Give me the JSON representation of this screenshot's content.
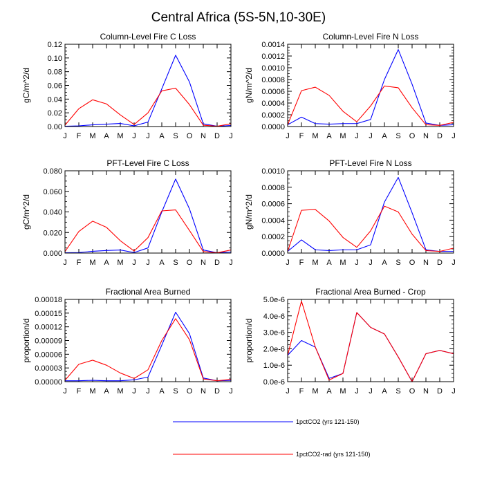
{
  "figure_title": "Central Africa (5S-5N,10-30E)",
  "legend": [
    {
      "label": "1pctCO2 (yrs 121-150)",
      "color": "#0000ff"
    },
    {
      "label": "1pctCO2-rad (yrs 121-150)",
      "color": "#ff0000"
    }
  ],
  "chart_data": [
    {
      "type": "line",
      "title": "Column-Level Fire C Loss",
      "ylabel": "gC/m^2/d",
      "categories": [
        "J",
        "F",
        "M",
        "A",
        "M",
        "J",
        "J",
        "A",
        "S",
        "O",
        "N",
        "D",
        "J"
      ],
      "ylim": [
        0,
        0.12
      ],
      "yticks": [
        0,
        0.02,
        0.04,
        0.06,
        0.08,
        0.1,
        0.12
      ],
      "yticklabels": [
        "0.00",
        "0.02",
        "0.04",
        "0.06",
        "0.08",
        "0.10",
        "0.12"
      ],
      "series": [
        {
          "name": "1pctCO2 (yrs 121-150)",
          "color": "#0000ff",
          "values": [
            0.0005,
            0.001,
            0.0025,
            0.0035,
            0.0045,
            0.001,
            0.0065,
            0.055,
            0.104,
            0.065,
            0.004,
            0.0005,
            0.0015
          ]
        },
        {
          "name": "1pctCO2-rad (yrs 121-150)",
          "color": "#ff0000",
          "values": [
            0.002,
            0.026,
            0.039,
            0.033,
            0.017,
            0.003,
            0.02,
            0.052,
            0.056,
            0.032,
            0.002,
            0.0005,
            0.004
          ]
        }
      ]
    },
    {
      "type": "line",
      "title": "Column-Level Fire N Loss",
      "ylabel": "gN/m^2/d",
      "categories": [
        "J",
        "F",
        "M",
        "A",
        "M",
        "J",
        "J",
        "A",
        "S",
        "O",
        "N",
        "D",
        "J"
      ],
      "ylim": [
        0,
        0.0014
      ],
      "yticks": [
        0,
        0.0002,
        0.0004,
        0.0006,
        0.0008,
        0.001,
        0.0012,
        0.0014
      ],
      "yticklabels": [
        "0.0000",
        "0.0002",
        "0.0004",
        "0.0006",
        "0.0008",
        "0.0010",
        "0.0012",
        "0.0014"
      ],
      "series": [
        {
          "name": "1pctCO2 (yrs 121-150)",
          "color": "#0000ff",
          "values": [
            3e-05,
            0.00016,
            5e-05,
            4e-05,
            5e-05,
            5e-05,
            0.00012,
            0.0008,
            0.00131,
            0.00072,
            6e-05,
            2e-05,
            3e-05
          ]
        },
        {
          "name": "1pctCO2-rad (yrs 121-150)",
          "color": "#ff0000",
          "values": [
            3e-05,
            0.00061,
            0.00067,
            0.00053,
            0.00026,
            8e-05,
            0.00035,
            0.00069,
            0.00066,
            0.00032,
            3e-05,
            2e-05,
            7e-05
          ]
        }
      ]
    },
    {
      "type": "line",
      "title": "PFT-Level Fire C Loss",
      "ylabel": "gC/m^2/d",
      "categories": [
        "J",
        "F",
        "M",
        "A",
        "M",
        "J",
        "J",
        "A",
        "S",
        "O",
        "N",
        "D",
        "J"
      ],
      "ylim": [
        0,
        0.08
      ],
      "yticks": [
        0,
        0.02,
        0.04,
        0.06,
        0.08
      ],
      "yticklabels": [
        "0.000",
        "0.020",
        "0.040",
        "0.060",
        "0.080"
      ],
      "series": [
        {
          "name": "1pctCO2 (yrs 121-150)",
          "color": "#0000ff",
          "values": [
            0.0003,
            0.0005,
            0.0017,
            0.0025,
            0.003,
            0.0005,
            0.005,
            0.04,
            0.072,
            0.043,
            0.003,
            0.0003,
            0.001
          ]
        },
        {
          "name": "1pctCO2-rad (yrs 121-150)",
          "color": "#ff0000",
          "values": [
            0.0015,
            0.021,
            0.031,
            0.025,
            0.012,
            0.002,
            0.015,
            0.041,
            0.042,
            0.022,
            0.0015,
            0.0003,
            0.003
          ]
        }
      ]
    },
    {
      "type": "line",
      "title": "PFT-Level Fire N Loss",
      "ylabel": "gN/m^2/d",
      "categories": [
        "J",
        "F",
        "M",
        "A",
        "M",
        "J",
        "J",
        "A",
        "S",
        "O",
        "N",
        "D",
        "J"
      ],
      "ylim": [
        0,
        0.001
      ],
      "yticks": [
        0,
        0.0002,
        0.0004,
        0.0006,
        0.0008,
        0.001
      ],
      "yticklabels": [
        "0.0000",
        "0.0002",
        "0.0004",
        "0.0006",
        "0.0008",
        "0.0010"
      ],
      "series": [
        {
          "name": "1pctCO2 (yrs 121-150)",
          "color": "#0000ff",
          "values": [
            2e-05,
            0.00016,
            4e-05,
            3e-05,
            4e-05,
            4e-05,
            0.0001,
            0.00062,
            0.00092,
            0.00049,
            4e-05,
            2e-05,
            2e-05
          ]
        },
        {
          "name": "1pctCO2-rad (yrs 121-150)",
          "color": "#ff0000",
          "values": [
            2e-05,
            0.00052,
            0.00053,
            0.00039,
            0.00019,
            7e-05,
            0.00027,
            0.00057,
            0.0005,
            0.00023,
            3e-05,
            2e-05,
            6e-05
          ]
        }
      ]
    },
    {
      "type": "line",
      "title": "Fractional Area Burned",
      "ylabel": "proportion/d",
      "categories": [
        "J",
        "F",
        "M",
        "A",
        "M",
        "J",
        "J",
        "A",
        "S",
        "O",
        "N",
        "D",
        "J"
      ],
      "ylim": [
        0,
        0.00018
      ],
      "yticks": [
        0,
        3e-05,
        6e-05,
        9e-05,
        0.00012,
        0.00015,
        0.00018
      ],
      "yticklabels": [
        "0.00000",
        "0.00003",
        "0.00006",
        "0.00009",
        "0.00012",
        "0.00015",
        "0.00018"
      ],
      "series": [
        {
          "name": "1pctCO2 (yrs 121-150)",
          "color": "#0000ff",
          "values": [
            2e-06,
            2e-06,
            3e-06,
            2e-06,
            2e-06,
            4e-06,
            1e-05,
            8e-05,
            0.000152,
            0.000105,
            8e-06,
            2e-06,
            3e-06
          ]
        },
        {
          "name": "1pctCO2-rad (yrs 121-150)",
          "color": "#ff0000",
          "values": [
            3e-06,
            3.8e-05,
            4.7e-05,
            3.6e-05,
            1.9e-05,
            7e-06,
            2.6e-05,
            9e-05,
            0.000138,
            9.2e-05,
            6e-06,
            2e-06,
            5e-06
          ]
        }
      ]
    },
    {
      "type": "line",
      "title": "Fractional Area Burned - Crop",
      "ylabel": "proportion/d",
      "categories": [
        "J",
        "F",
        "M",
        "A",
        "M",
        "J",
        "J",
        "A",
        "S",
        "O",
        "N",
        "D",
        "J"
      ],
      "ylim": [
        0,
        5e-06
      ],
      "yticks": [
        0,
        1e-06,
        2e-06,
        3e-06,
        4e-06,
        5e-06
      ],
      "yticklabels": [
        "0.0e-6",
        "1.0e-6",
        "2.0e-6",
        "3.0e-6",
        "4.0e-6",
        "5.0e-6"
      ],
      "series": [
        {
          "name": "1pctCO2 (yrs 121-150)",
          "color": "#0000ff",
          "values": [
            1.6e-06,
            2.5e-06,
            2.1e-06,
            2e-07,
            5e-07,
            4.2e-06,
            3.3e-06,
            2.9e-06,
            1.5e-06,
            0.0,
            1.7e-06,
            1.9e-06,
            1.7e-06
          ]
        },
        {
          "name": "1pctCO2-rad (yrs 121-150)",
          "color": "#ff0000",
          "values": [
            1.6e-06,
            4.9e-06,
            2.1e-06,
            1e-07,
            5e-07,
            4.2e-06,
            3.3e-06,
            2.9e-06,
            1.5e-06,
            0.0,
            1.7e-06,
            1.9e-06,
            1.7e-06
          ]
        }
      ]
    }
  ]
}
